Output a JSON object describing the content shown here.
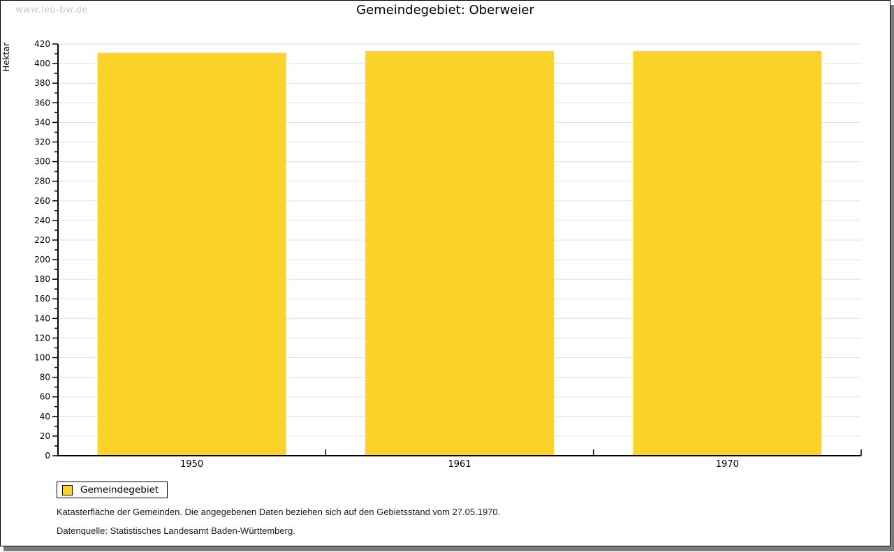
{
  "watermark": "www.leo-bw.de",
  "title": "Gemeindegebiet: Oberweier",
  "chart_data": {
    "type": "bar",
    "title": "Gemeindegebiet: Oberweier",
    "categories": [
      "1950",
      "1961",
      "1970"
    ],
    "series": [
      {
        "name": "Gemeindegebiet",
        "values": [
          411,
          413,
          413
        ]
      }
    ],
    "xlabel": "",
    "ylabel": "Hektar",
    "ylim": [
      0,
      420
    ],
    "ytick_step": 20,
    "yminor_step": 10,
    "grid": true,
    "legend_position": "bottom-left",
    "bar_color": "#FCD32B",
    "gridline_color": "#e0e0e0",
    "axis_color": "#000000"
  },
  "legend": {
    "items": [
      {
        "label": "Gemeindegebiet",
        "color": "#FCD32B",
        "swatch_icon": "yellow-square-icon"
      }
    ]
  },
  "footer": {
    "line1": "Katasterfläche der Gemeinden. Die angegebenen Daten beziehen sich auf den Gebietsstand vom 27.05.1970.",
    "line2": "Datenquelle: Statistisches Landesamt Baden-Württemberg."
  },
  "colors": {
    "bar": "#FCD32B",
    "gridline": "#e0e0e0",
    "watermark": "#c9c9c9",
    "frame_shadow": "#7d7d7d"
  }
}
